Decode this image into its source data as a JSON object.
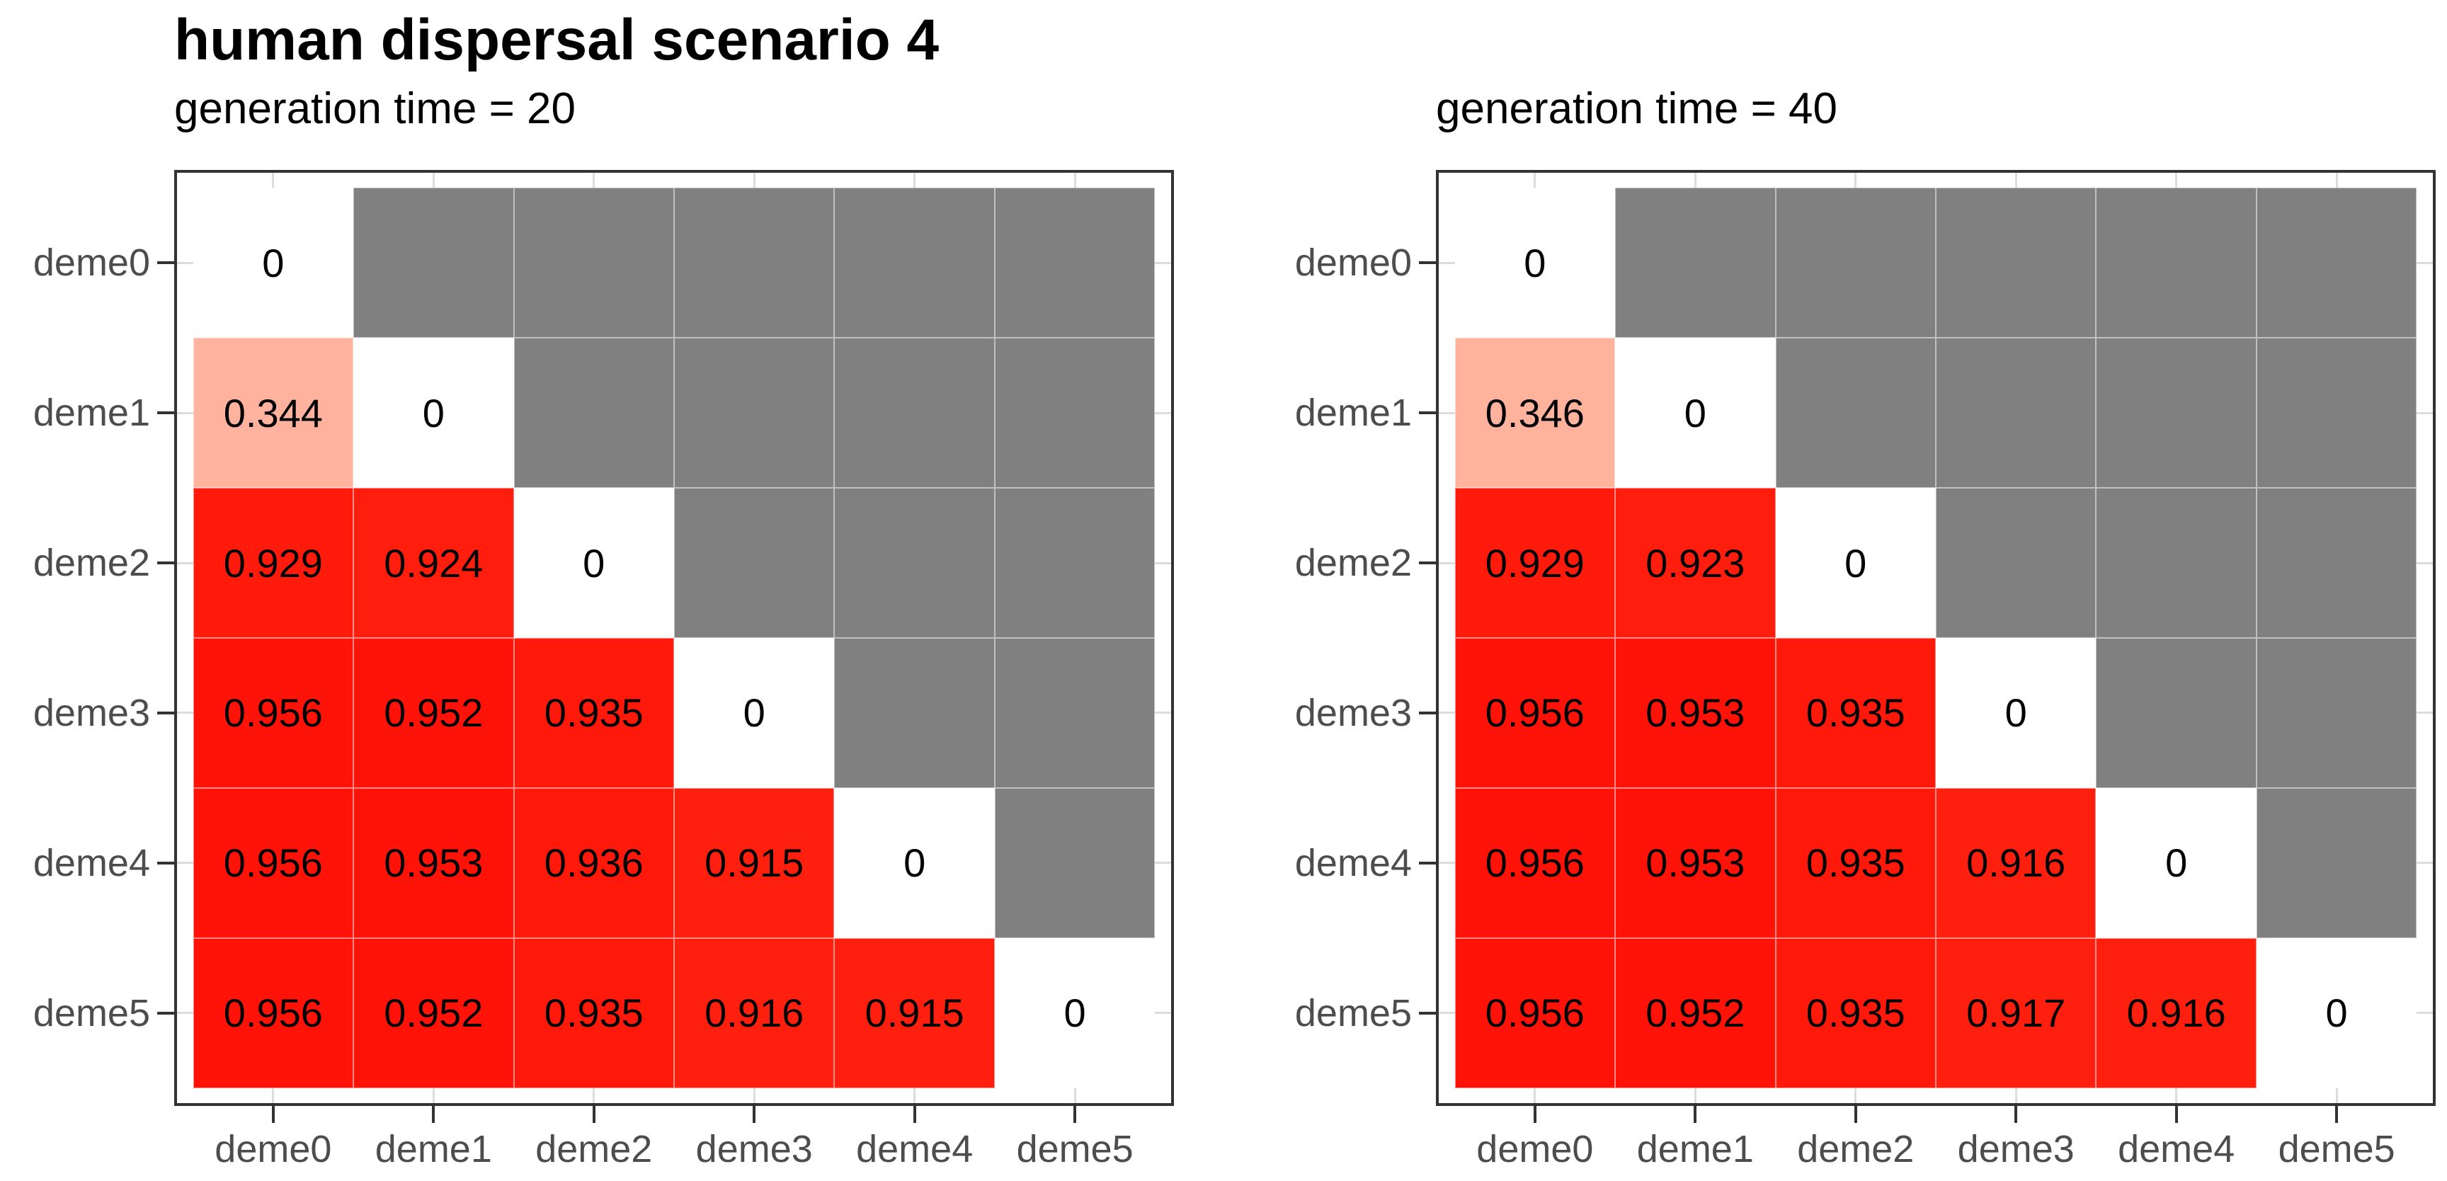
{
  "title": "human dispersal scenario 4",
  "chart_data": {
    "type": "heatmap",
    "title": "human dispersal scenario 4",
    "categories": [
      "deme0",
      "deme1",
      "deme2",
      "deme3",
      "deme4",
      "deme5"
    ],
    "x_axis_labels": [
      "deme0",
      "deme1",
      "deme2",
      "deme3",
      "deme4",
      "deme5"
    ],
    "y_axis_labels": [
      "deme0",
      "deme1",
      "deme2",
      "deme3",
      "deme4",
      "deme5"
    ],
    "value_range": [
      0,
      1
    ],
    "legend": "none",
    "grid": "light stubs at tick positions in tile margins",
    "panels": [
      {
        "subtitle": "generation time = 20",
        "matrix": [
          [
            0,
            null,
            null,
            null,
            null,
            null
          ],
          [
            0.344,
            0,
            null,
            null,
            null,
            null
          ],
          [
            0.929,
            0.924,
            0,
            null,
            null,
            null
          ],
          [
            0.956,
            0.952,
            0.935,
            0,
            null,
            null
          ],
          [
            0.956,
            0.953,
            0.936,
            0.915,
            0,
            null
          ],
          [
            0.956,
            0.952,
            0.935,
            0.916,
            0.915,
            0
          ]
        ]
      },
      {
        "subtitle": "generation time = 40",
        "matrix": [
          [
            0,
            null,
            null,
            null,
            null,
            null
          ],
          [
            0.346,
            0,
            null,
            null,
            null,
            null
          ],
          [
            0.929,
            0.923,
            0,
            null,
            null,
            null
          ],
          [
            0.956,
            0.953,
            0.935,
            0,
            null,
            null
          ],
          [
            0.956,
            0.953,
            0.935,
            0.916,
            0,
            null
          ],
          [
            0.956,
            0.952,
            0.935,
            0.917,
            0.916,
            0
          ]
        ]
      }
    ],
    "colors": {
      "low": "#FFFFFF",
      "high": "#FF0000",
      "na_fill": "#808080",
      "value_0p344_sample": "#FFB9A3",
      "panel_border": "#333333",
      "axis_text": "#4D4D4D",
      "tick": "#333333",
      "grid_stub": "#DCDCDC",
      "cell_text": "#000000",
      "title_text": "#000000"
    }
  }
}
